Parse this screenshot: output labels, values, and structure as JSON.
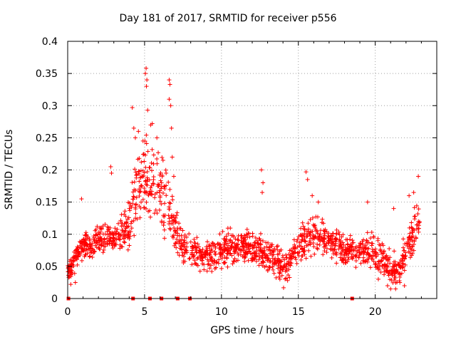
{
  "chart_data": {
    "type": "scatter",
    "title": "Day 181 of 2017, SRMTID for receiver p556",
    "xlabel": "GPS time / hours",
    "ylabel": "SRMTID / TECUs",
    "xlim": [
      0,
      24
    ],
    "ylim": [
      0,
      0.4
    ],
    "x_ticks": [
      "0",
      "5",
      "10",
      "15",
      "20"
    ],
    "y_ticks": [
      "0",
      "0.05",
      "0.1",
      "0.15",
      "0.2",
      "0.25",
      "0.3",
      "0.35",
      "0.4"
    ],
    "grid": true,
    "marker": "+",
    "color": "#ff0000",
    "zero_markers_x": [
      0.05,
      4.25,
      5.35,
      6.1,
      7.15,
      7.95,
      18.5
    ],
    "trend": [
      {
        "x": 0.0,
        "y": 0.04
      },
      {
        "x": 0.5,
        "y": 0.065
      },
      {
        "x": 1.0,
        "y": 0.085
      },
      {
        "x": 1.5,
        "y": 0.08
      },
      {
        "x": 2.0,
        "y": 0.09
      },
      {
        "x": 2.5,
        "y": 0.1
      },
      {
        "x": 3.0,
        "y": 0.09
      },
      {
        "x": 3.5,
        "y": 0.1
      },
      {
        "x": 4.0,
        "y": 0.12
      },
      {
        "x": 4.5,
        "y": 0.17
      },
      {
        "x": 5.0,
        "y": 0.19
      },
      {
        "x": 5.5,
        "y": 0.18
      },
      {
        "x": 6.0,
        "y": 0.17
      },
      {
        "x": 6.5,
        "y": 0.13
      },
      {
        "x": 7.0,
        "y": 0.11
      },
      {
        "x": 7.5,
        "y": 0.08
      },
      {
        "x": 8.0,
        "y": 0.075
      },
      {
        "x": 8.5,
        "y": 0.07
      },
      {
        "x": 9.0,
        "y": 0.07
      },
      {
        "x": 9.5,
        "y": 0.065
      },
      {
        "x": 10.0,
        "y": 0.075
      },
      {
        "x": 10.5,
        "y": 0.08
      },
      {
        "x": 11.0,
        "y": 0.075
      },
      {
        "x": 11.5,
        "y": 0.08
      },
      {
        "x": 12.0,
        "y": 0.075
      },
      {
        "x": 12.5,
        "y": 0.075
      },
      {
        "x": 13.0,
        "y": 0.065
      },
      {
        "x": 13.5,
        "y": 0.06
      },
      {
        "x": 14.0,
        "y": 0.05
      },
      {
        "x": 14.5,
        "y": 0.06
      },
      {
        "x": 15.0,
        "y": 0.08
      },
      {
        "x": 15.5,
        "y": 0.095
      },
      {
        "x": 16.0,
        "y": 0.1
      },
      {
        "x": 16.5,
        "y": 0.095
      },
      {
        "x": 17.0,
        "y": 0.09
      },
      {
        "x": 17.5,
        "y": 0.085
      },
      {
        "x": 18.0,
        "y": 0.08
      },
      {
        "x": 18.5,
        "y": 0.075
      },
      {
        "x": 19.0,
        "y": 0.075
      },
      {
        "x": 19.5,
        "y": 0.08
      },
      {
        "x": 20.0,
        "y": 0.07
      },
      {
        "x": 20.5,
        "y": 0.06
      },
      {
        "x": 21.0,
        "y": 0.045
      },
      {
        "x": 21.5,
        "y": 0.04
      },
      {
        "x": 22.0,
        "y": 0.075
      },
      {
        "x": 22.5,
        "y": 0.1
      },
      {
        "x": 22.9,
        "y": 0.12
      }
    ],
    "spread": [
      {
        "x": 0.0,
        "s": 0.012
      },
      {
        "x": 3.5,
        "s": 0.016
      },
      {
        "x": 4.3,
        "s": 0.03
      },
      {
        "x": 5.2,
        "s": 0.045
      },
      {
        "x": 6.5,
        "s": 0.035
      },
      {
        "x": 7.5,
        "s": 0.018
      },
      {
        "x": 14.0,
        "s": 0.016
      },
      {
        "x": 15.5,
        "s": 0.02
      },
      {
        "x": 20.0,
        "s": 0.016
      },
      {
        "x": 22.9,
        "s": 0.022
      }
    ],
    "peaks": [
      {
        "x": 0.9,
        "y": 0.155
      },
      {
        "x": 2.8,
        "y": 0.205
      },
      {
        "x": 2.85,
        "y": 0.195
      },
      {
        "x": 4.2,
        "y": 0.297
      },
      {
        "x": 4.3,
        "y": 0.265
      },
      {
        "x": 4.4,
        "y": 0.25
      },
      {
        "x": 4.6,
        "y": 0.26
      },
      {
        "x": 4.9,
        "y": 0.245
      },
      {
        "x": 5.05,
        "y": 0.35
      },
      {
        "x": 5.1,
        "y": 0.358
      },
      {
        "x": 5.15,
        "y": 0.34
      },
      {
        "x": 5.12,
        "y": 0.33
      },
      {
        "x": 5.2,
        "y": 0.293
      },
      {
        "x": 5.4,
        "y": 0.27
      },
      {
        "x": 5.5,
        "y": 0.272
      },
      {
        "x": 5.8,
        "y": 0.25
      },
      {
        "x": 6.2,
        "y": 0.215
      },
      {
        "x": 6.4,
        "y": 0.195
      },
      {
        "x": 6.6,
        "y": 0.34
      },
      {
        "x": 6.65,
        "y": 0.333
      },
      {
        "x": 6.6,
        "y": 0.31
      },
      {
        "x": 6.7,
        "y": 0.3
      },
      {
        "x": 6.75,
        "y": 0.265
      },
      {
        "x": 6.8,
        "y": 0.22
      },
      {
        "x": 6.9,
        "y": 0.19
      },
      {
        "x": 12.6,
        "y": 0.2
      },
      {
        "x": 12.7,
        "y": 0.18
      },
      {
        "x": 12.65,
        "y": 0.165
      },
      {
        "x": 15.5,
        "y": 0.197
      },
      {
        "x": 15.6,
        "y": 0.185
      },
      {
        "x": 15.9,
        "y": 0.16
      },
      {
        "x": 16.3,
        "y": 0.15
      },
      {
        "x": 19.5,
        "y": 0.15
      },
      {
        "x": 21.2,
        "y": 0.14
      },
      {
        "x": 22.2,
        "y": 0.16
      },
      {
        "x": 22.5,
        "y": 0.165
      },
      {
        "x": 22.8,
        "y": 0.19
      }
    ],
    "lows": [
      {
        "x": 0.2,
        "y": 0.022
      },
      {
        "x": 0.5,
        "y": 0.025
      },
      {
        "x": 14.3,
        "y": 0.028
      },
      {
        "x": 13.8,
        "y": 0.03
      },
      {
        "x": 20.2,
        "y": 0.03
      },
      {
        "x": 20.8,
        "y": 0.02
      },
      {
        "x": 21.0,
        "y": 0.015
      },
      {
        "x": 21.6,
        "y": 0.025
      },
      {
        "x": 21.9,
        "y": 0.02
      }
    ],
    "point_density": 72,
    "x_range": [
      0.0,
      22.9
    ]
  }
}
